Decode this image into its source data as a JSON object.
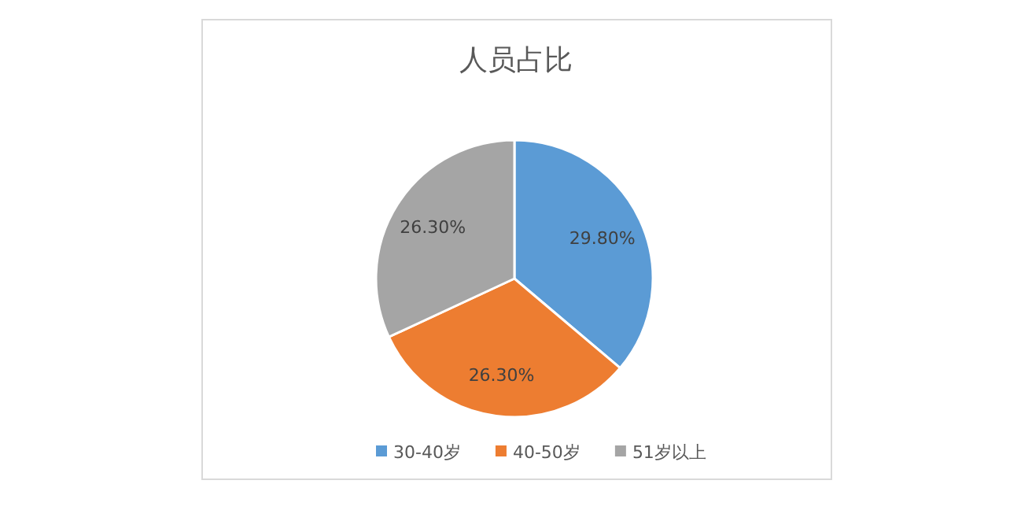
{
  "chart_data": {
    "type": "pie",
    "title": "人员占比",
    "categories": [
      "30-40岁",
      "40-50岁",
      "51岁以上"
    ],
    "values": [
      29.8,
      26.3,
      26.3
    ],
    "colors": [
      "#5b9bd5",
      "#ed7d31",
      "#a5a5a5"
    ],
    "value_labels": [
      "29.80%",
      "26.30%",
      "26.30%"
    ],
    "legend": "bottom"
  }
}
